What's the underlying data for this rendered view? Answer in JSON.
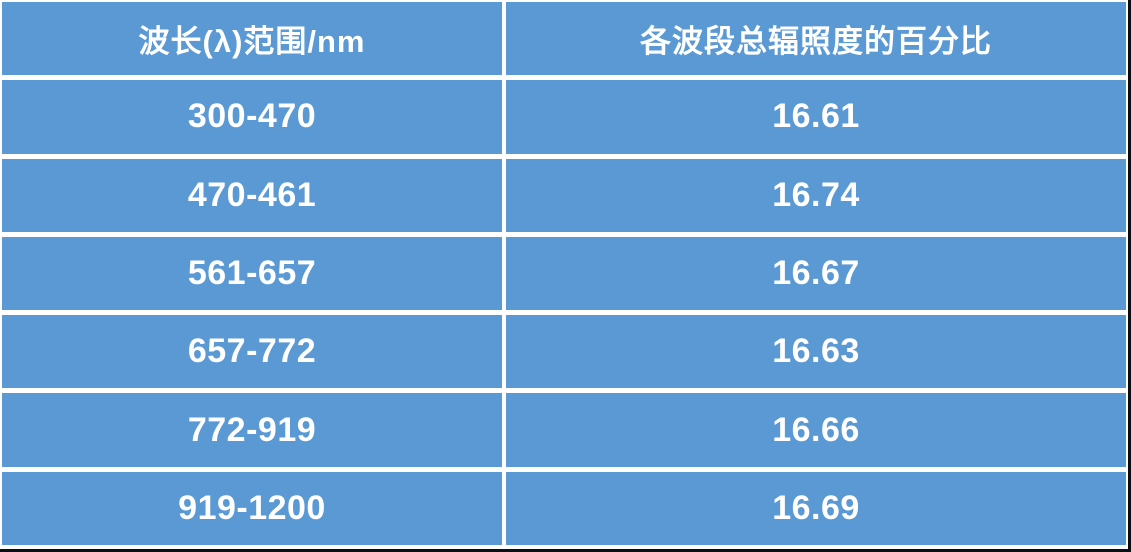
{
  "table": {
    "headers": [
      "波长(λ)范围/nm",
      "各波段总辐照度的百分比"
    ],
    "rows": [
      [
        "300-470",
        "16.61"
      ],
      [
        "470-461",
        "16.74"
      ],
      [
        "561-657",
        "16.67"
      ],
      [
        "657-772",
        "16.63"
      ],
      [
        "772-919",
        "16.66"
      ],
      [
        "919-1200",
        "16.69"
      ]
    ]
  },
  "colors": {
    "cell_blue": "#5A99D4",
    "separator_white": "#FFFFFF",
    "edge_dark": "#0D0D15",
    "text_white": "#FFFFFF"
  },
  "chart_data": {
    "type": "table",
    "title": "",
    "columns": [
      "波长(λ)范围/nm",
      "各波段总辐照度的百分比"
    ],
    "rows": [
      {
        "wavelength_range_nm": "300-470",
        "percent_of_total_irradiance": 16.61
      },
      {
        "wavelength_range_nm": "470-461",
        "percent_of_total_irradiance": 16.74
      },
      {
        "wavelength_range_nm": "561-657",
        "percent_of_total_irradiance": 16.67
      },
      {
        "wavelength_range_nm": "657-772",
        "percent_of_total_irradiance": 16.63
      },
      {
        "wavelength_range_nm": "772-919",
        "percent_of_total_irradiance": 16.66
      },
      {
        "wavelength_range_nm": "919-1200",
        "percent_of_total_irradiance": 16.69
      }
    ]
  }
}
